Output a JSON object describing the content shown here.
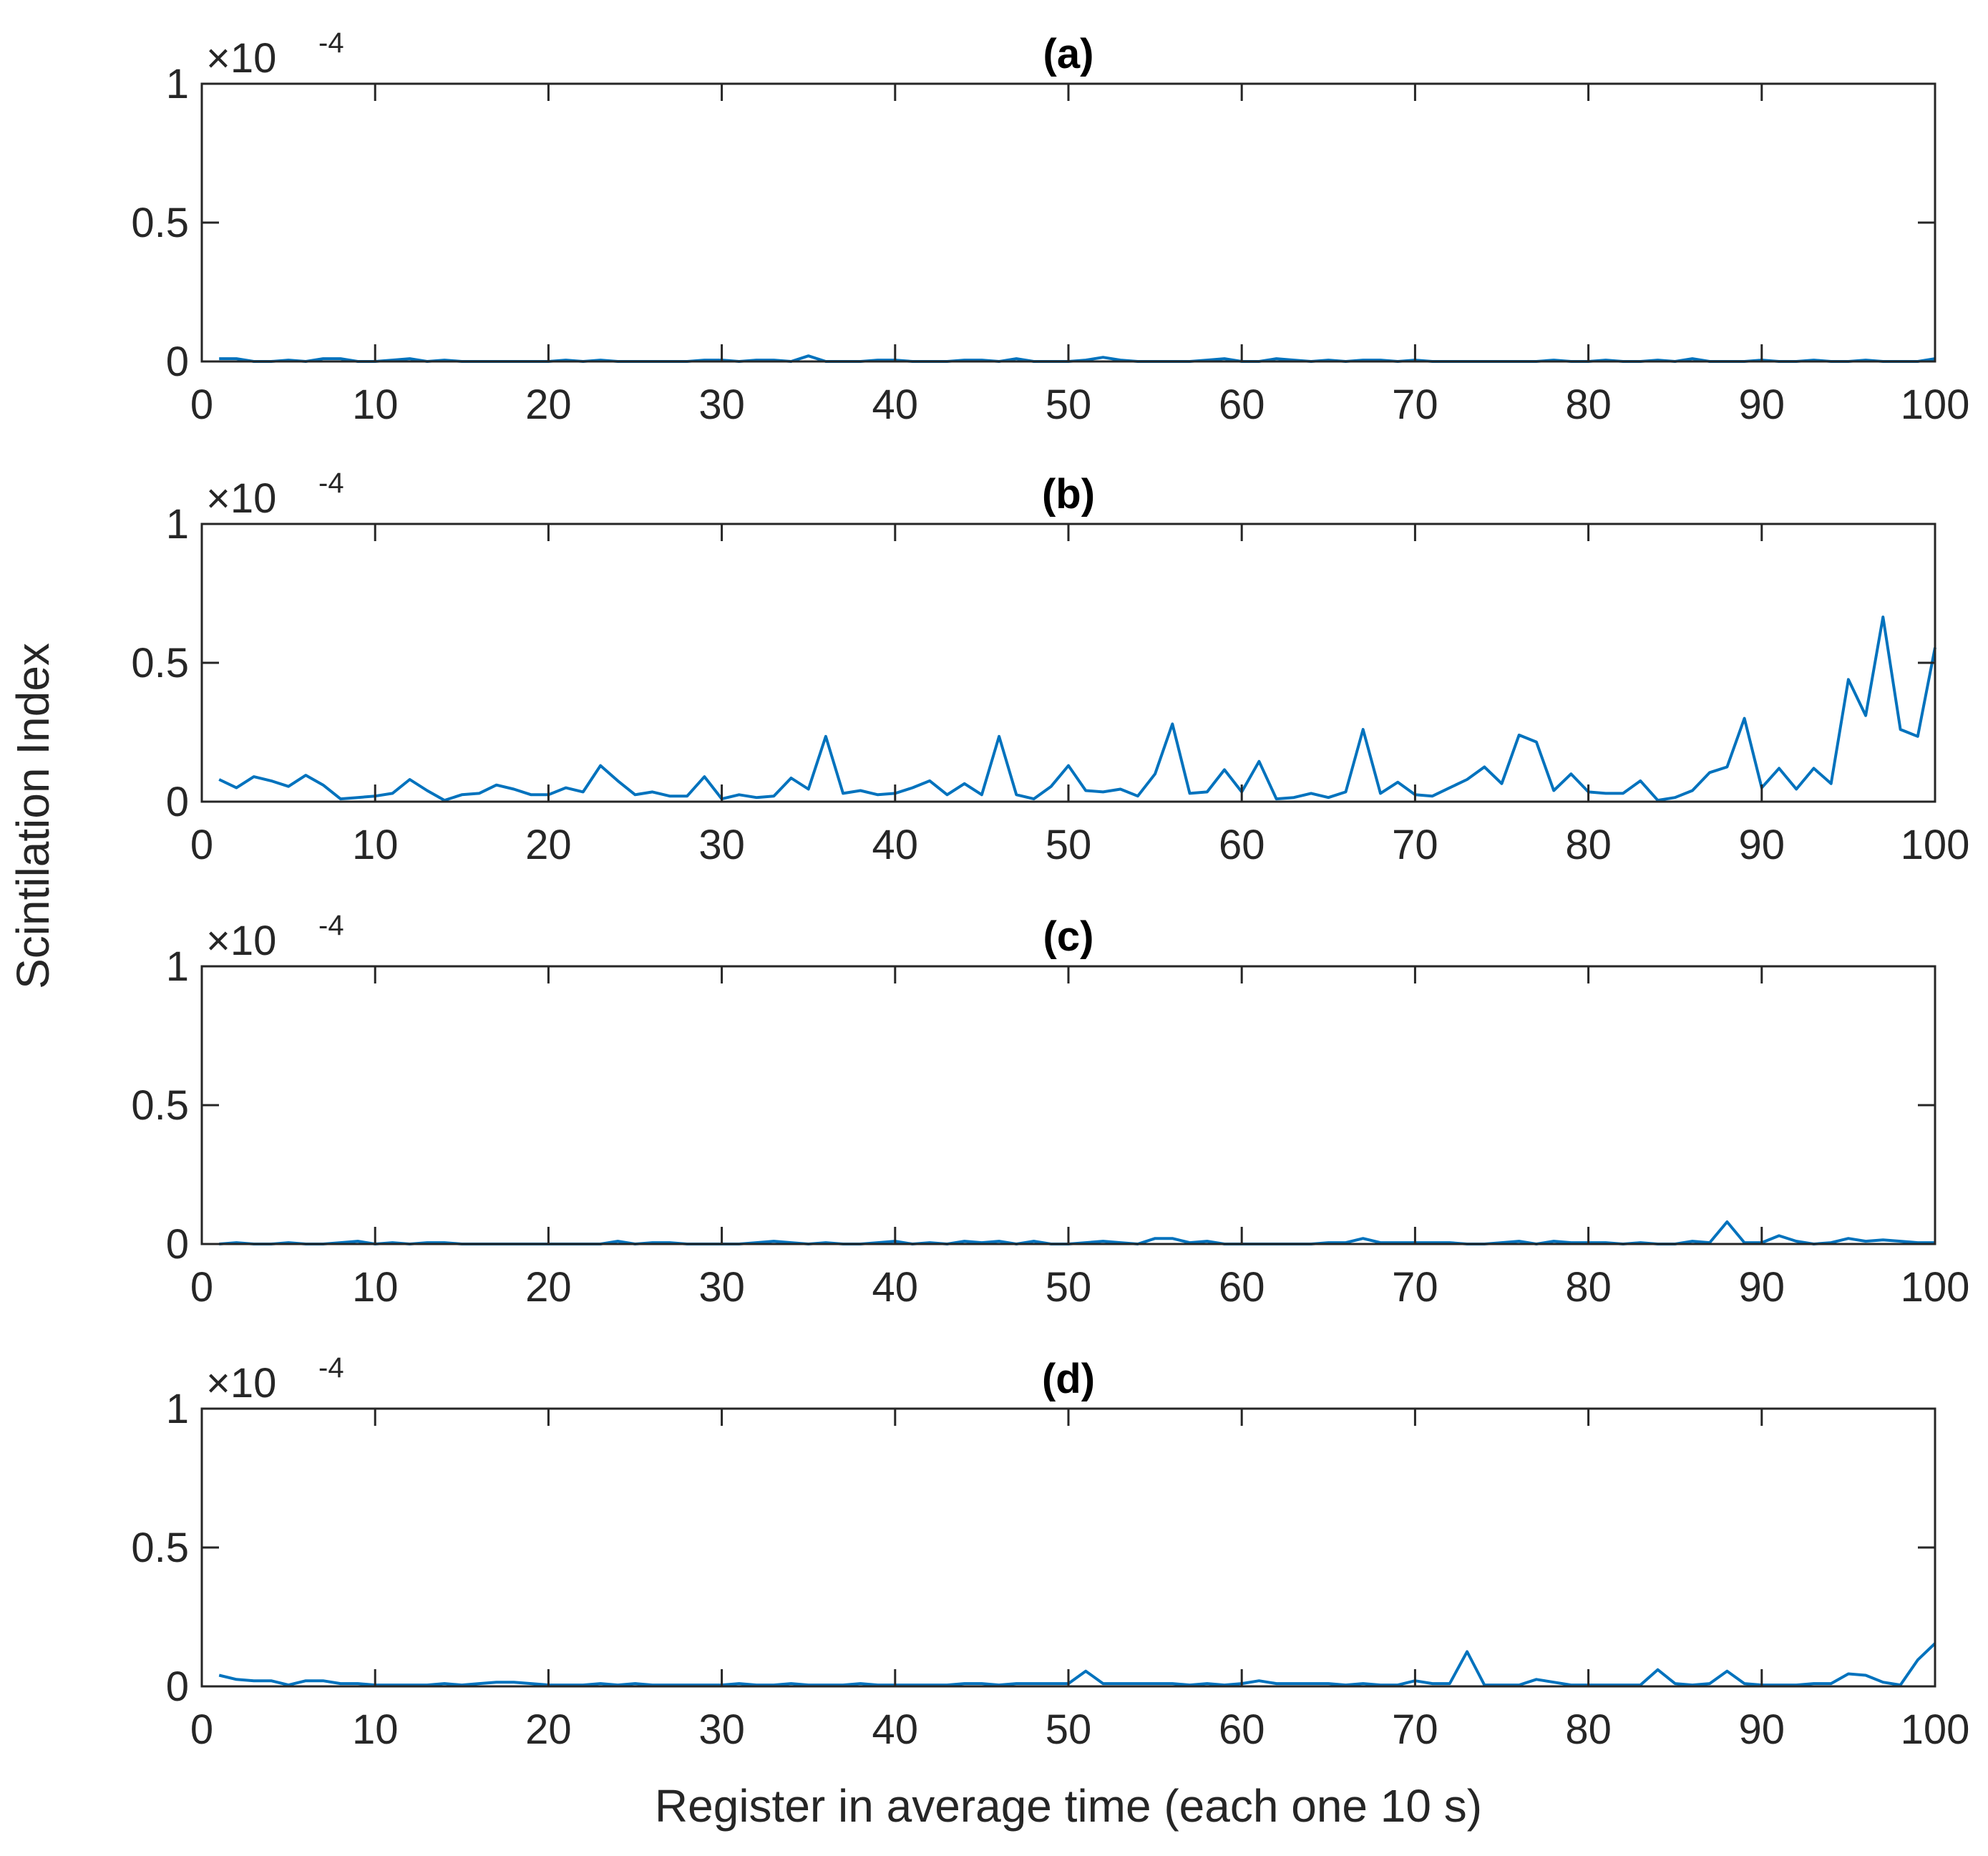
{
  "chart_data": {
    "type": "line",
    "xlabel": "Register in average time (each one 10 s)",
    "ylabel": "Scintilation Index",
    "xlim": [
      0,
      100
    ],
    "ylim": [
      0,
      1
    ],
    "x_ticks": [
      "0",
      "10",
      "20",
      "30",
      "40",
      "50",
      "60",
      "70",
      "80",
      "90",
      "100"
    ],
    "y_ticks": [
      "0",
      "0.5",
      "1"
    ],
    "y_multiplier": "×10",
    "y_multiplier_exponent": "-4",
    "line_color": "#0072BD",
    "grid": false,
    "legend": "none",
    "panels": [
      {
        "title": "(a)",
        "x": [
          1,
          2,
          3,
          4,
          5,
          6,
          7,
          8,
          9,
          10,
          11,
          12,
          13,
          14,
          15,
          16,
          17,
          18,
          19,
          20,
          21,
          22,
          23,
          24,
          25,
          26,
          27,
          28,
          29,
          30,
          31,
          32,
          33,
          34,
          35,
          36,
          37,
          38,
          39,
          40,
          41,
          42,
          43,
          44,
          45,
          46,
          47,
          48,
          49,
          50,
          51,
          52,
          53,
          54,
          55,
          56,
          57,
          58,
          59,
          60,
          61,
          62,
          63,
          64,
          65,
          66,
          67,
          68,
          69,
          70,
          71,
          72,
          73,
          74,
          75,
          76,
          77,
          78,
          79,
          80,
          81,
          82,
          83,
          84,
          85,
          86,
          87,
          88,
          89,
          90,
          91,
          92,
          93,
          94,
          95,
          96,
          97,
          98,
          99,
          100
        ],
        "values": [
          0.01,
          0.01,
          0.0,
          0.0,
          0.005,
          0.0,
          0.01,
          0.01,
          0.0,
          0.0,
          0.005,
          0.01,
          0.0,
          0.005,
          0.0,
          0.0,
          0.0,
          0.0,
          0.0,
          0.0,
          0.005,
          0.0,
          0.005,
          0.0,
          0.0,
          0.0,
          0.0,
          0.0,
          0.005,
          0.005,
          0.0,
          0.005,
          0.005,
          0.0,
          0.02,
          0.0,
          0.0,
          0.0,
          0.005,
          0.005,
          0.0,
          0.0,
          0.0,
          0.005,
          0.005,
          0.0,
          0.01,
          0.0,
          0.0,
          0.0,
          0.005,
          0.015,
          0.005,
          0.0,
          0.0,
          0.0,
          0.0,
          0.005,
          0.01,
          0.0,
          0.0,
          0.01,
          0.005,
          0.0,
          0.005,
          0.0,
          0.005,
          0.005,
          0.0,
          0.005,
          0.0,
          0.0,
          0.0,
          0.0,
          0.0,
          0.0,
          0.0,
          0.005,
          0.0,
          0.0,
          0.005,
          0.0,
          0.0,
          0.005,
          0.0,
          0.01,
          0.0,
          0.0,
          0.0,
          0.005,
          0.0,
          0.0,
          0.005,
          0.0,
          0.0,
          0.005,
          0.0,
          0.0,
          0.0,
          0.01
        ]
      },
      {
        "title": "(b)",
        "x": [
          1,
          2,
          3,
          4,
          5,
          6,
          7,
          8,
          9,
          10,
          11,
          12,
          13,
          14,
          15,
          16,
          17,
          18,
          19,
          20,
          21,
          22,
          23,
          24,
          25,
          26,
          27,
          28,
          29,
          30,
          31,
          32,
          33,
          34,
          35,
          36,
          37,
          38,
          39,
          40,
          41,
          42,
          43,
          44,
          45,
          46,
          47,
          48,
          49,
          50,
          51,
          52,
          53,
          54,
          55,
          56,
          57,
          58,
          59,
          60,
          61,
          62,
          63,
          64,
          65,
          66,
          67,
          68,
          69,
          70,
          71,
          72,
          73,
          74,
          75,
          76,
          77,
          78,
          79,
          80,
          81,
          82,
          83,
          84,
          85,
          86,
          87,
          88,
          89,
          90,
          91,
          92,
          93,
          94,
          95,
          96,
          97,
          98,
          99,
          100
        ],
        "values": [
          0.08,
          0.05,
          0.09,
          0.075,
          0.055,
          0.095,
          0.06,
          0.01,
          0.015,
          0.02,
          0.03,
          0.08,
          0.04,
          0.005,
          0.025,
          0.03,
          0.06,
          0.045,
          0.025,
          0.025,
          0.05,
          0.035,
          0.13,
          0.075,
          0.025,
          0.035,
          0.02,
          0.02,
          0.09,
          0.01,
          0.025,
          0.015,
          0.02,
          0.085,
          0.045,
          0.235,
          0.03,
          0.04,
          0.025,
          0.03,
          0.05,
          0.075,
          0.025,
          0.065,
          0.025,
          0.235,
          0.025,
          0.01,
          0.055,
          0.13,
          0.04,
          0.035,
          0.045,
          0.02,
          0.1,
          0.28,
          0.03,
          0.035,
          0.115,
          0.035,
          0.145,
          0.01,
          0.015,
          0.03,
          0.015,
          0.035,
          0.26,
          0.03,
          0.07,
          0.025,
          0.02,
          0.05,
          0.08,
          0.125,
          0.065,
          0.24,
          0.215,
          0.04,
          0.1,
          0.035,
          0.03,
          0.03,
          0.075,
          0.005,
          0.015,
          0.04,
          0.105,
          0.125,
          0.3,
          0.05,
          0.12,
          0.045,
          0.12,
          0.065,
          0.44,
          0.31,
          0.665,
          0.26,
          0.235,
          0.555
        ]
      },
      {
        "title": "(c)",
        "x": [
          1,
          2,
          3,
          4,
          5,
          6,
          7,
          8,
          9,
          10,
          11,
          12,
          13,
          14,
          15,
          16,
          17,
          18,
          19,
          20,
          21,
          22,
          23,
          24,
          25,
          26,
          27,
          28,
          29,
          30,
          31,
          32,
          33,
          34,
          35,
          36,
          37,
          38,
          39,
          40,
          41,
          42,
          43,
          44,
          45,
          46,
          47,
          48,
          49,
          50,
          51,
          52,
          53,
          54,
          55,
          56,
          57,
          58,
          59,
          60,
          61,
          62,
          63,
          64,
          65,
          66,
          67,
          68,
          69,
          70,
          71,
          72,
          73,
          74,
          75,
          76,
          77,
          78,
          79,
          80,
          81,
          82,
          83,
          84,
          85,
          86,
          87,
          88,
          89,
          90,
          91,
          92,
          93,
          94,
          95,
          96,
          97,
          98,
          99,
          100
        ],
        "values": [
          0.0,
          0.005,
          0.0,
          0.0,
          0.005,
          0.0,
          0.0,
          0.005,
          0.01,
          0.0,
          0.005,
          0.0,
          0.005,
          0.005,
          0.0,
          0.0,
          0.0,
          0.0,
          0.0,
          0.0,
          0.0,
          0.0,
          0.0,
          0.01,
          0.0,
          0.005,
          0.005,
          0.0,
          0.0,
          0.0,
          0.0,
          0.005,
          0.01,
          0.005,
          0.0,
          0.005,
          0.0,
          0.0,
          0.005,
          0.01,
          0.0,
          0.005,
          0.0,
          0.01,
          0.005,
          0.01,
          0.0,
          0.01,
          0.0,
          0.0,
          0.005,
          0.01,
          0.005,
          0.0,
          0.02,
          0.02,
          0.005,
          0.01,
          0.0,
          0.0,
          0.0,
          0.0,
          0.0,
          0.0,
          0.005,
          0.005,
          0.02,
          0.005,
          0.005,
          0.005,
          0.005,
          0.005,
          0.0,
          0.0,
          0.005,
          0.01,
          0.0,
          0.01,
          0.005,
          0.005,
          0.005,
          0.0,
          0.005,
          0.0,
          0.0,
          0.01,
          0.005,
          0.08,
          0.005,
          0.005,
          0.03,
          0.01,
          0.0,
          0.005,
          0.02,
          0.01,
          0.015,
          0.01,
          0.005,
          0.005
        ]
      },
      {
        "title": "(d)",
        "x": [
          1,
          2,
          3,
          4,
          5,
          6,
          7,
          8,
          9,
          10,
          11,
          12,
          13,
          14,
          15,
          16,
          17,
          18,
          19,
          20,
          21,
          22,
          23,
          24,
          25,
          26,
          27,
          28,
          29,
          30,
          31,
          32,
          33,
          34,
          35,
          36,
          37,
          38,
          39,
          40,
          41,
          42,
          43,
          44,
          45,
          46,
          47,
          48,
          49,
          50,
          51,
          52,
          53,
          54,
          55,
          56,
          57,
          58,
          59,
          60,
          61,
          62,
          63,
          64,
          65,
          66,
          67,
          68,
          69,
          70,
          71,
          72,
          73,
          74,
          75,
          76,
          77,
          78,
          79,
          80,
          81,
          82,
          83,
          84,
          85,
          86,
          87,
          88,
          89,
          90,
          91,
          92,
          93,
          94,
          95,
          96,
          97,
          98,
          99,
          100
        ],
        "values": [
          0.04,
          0.025,
          0.02,
          0.02,
          0.005,
          0.02,
          0.02,
          0.01,
          0.01,
          0.005,
          0.005,
          0.005,
          0.005,
          0.01,
          0.005,
          0.01,
          0.015,
          0.015,
          0.01,
          0.005,
          0.005,
          0.005,
          0.01,
          0.005,
          0.01,
          0.005,
          0.005,
          0.005,
          0.005,
          0.005,
          0.01,
          0.005,
          0.005,
          0.01,
          0.005,
          0.005,
          0.005,
          0.01,
          0.005,
          0.005,
          0.005,
          0.005,
          0.005,
          0.01,
          0.01,
          0.005,
          0.01,
          0.01,
          0.01,
          0.01,
          0.055,
          0.01,
          0.01,
          0.01,
          0.01,
          0.01,
          0.005,
          0.01,
          0.005,
          0.01,
          0.02,
          0.01,
          0.01,
          0.01,
          0.01,
          0.005,
          0.01,
          0.005,
          0.005,
          0.02,
          0.01,
          0.01,
          0.125,
          0.005,
          0.005,
          0.005,
          0.025,
          0.015,
          0.005,
          0.005,
          0.005,
          0.005,
          0.005,
          0.06,
          0.01,
          0.005,
          0.01,
          0.055,
          0.01,
          0.005,
          0.005,
          0.005,
          0.01,
          0.01,
          0.045,
          0.04,
          0.015,
          0.005,
          0.095,
          0.155
        ]
      }
    ]
  }
}
